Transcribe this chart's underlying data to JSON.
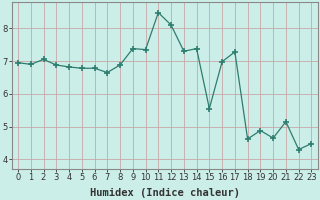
{
  "x": [
    0,
    1,
    2,
    3,
    4,
    5,
    6,
    7,
    8,
    9,
    10,
    11,
    12,
    13,
    14,
    15,
    16,
    17,
    18,
    19,
    20,
    21,
    22,
    23
  ],
  "y": [
    6.95,
    6.9,
    7.05,
    6.88,
    6.82,
    6.78,
    6.78,
    6.65,
    6.88,
    7.38,
    7.35,
    8.48,
    8.1,
    7.3,
    7.38,
    5.55,
    6.98,
    7.28,
    4.62,
    4.88,
    4.65,
    5.15,
    4.3,
    4.48
  ],
  "line_color": "#2d7d6e",
  "marker": "+",
  "marker_size": 4,
  "bg_color": "#cceee8",
  "grid_color_major": "#c8a8a8",
  "xlabel": "Humidex (Indice chaleur)",
  "ylim": [
    3.7,
    8.8
  ],
  "xlim": [
    -0.5,
    23.5
  ],
  "yticks": [
    4,
    5,
    6,
    7,
    8
  ],
  "xticks": [
    0,
    1,
    2,
    3,
    4,
    5,
    6,
    7,
    8,
    9,
    10,
    11,
    12,
    13,
    14,
    15,
    16,
    17,
    18,
    19,
    20,
    21,
    22,
    23
  ],
  "font_color": "#333333",
  "tick_fontsize": 6,
  "label_fontsize": 7.5,
  "spine_color": "#888888"
}
